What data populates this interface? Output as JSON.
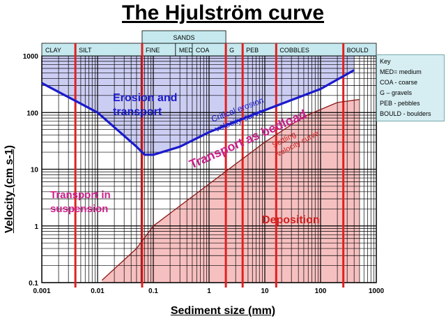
{
  "title": "The Hjulström curve",
  "chart_data": {
    "type": "line",
    "title": "The Hjulström curve",
    "xlabel": "Sediment size (mm)",
    "ylabel": "Velocity (cm s-1)",
    "xscale": "log",
    "yscale": "log",
    "xlim": [
      0.001,
      1000
    ],
    "ylim": [
      0.1,
      1000
    ],
    "grid": true,
    "x_ticks": [
      "0.001",
      "0.01",
      "0.1",
      "1",
      "10",
      "100",
      "1000"
    ],
    "y_ticks": [
      "0.1",
      "1",
      "10",
      "100",
      "1000"
    ],
    "series": [
      {
        "name": "Critical erosion velocity curve",
        "color": "#1a1acc",
        "x": [
          0.001,
          0.01,
          0.05,
          0.07,
          0.1,
          0.3,
          1,
          10,
          100,
          400
        ],
        "y": [
          330,
          100,
          25,
          18,
          18,
          25,
          45,
          110,
          260,
          560
        ]
      },
      {
        "name": "Settling velocity curve",
        "color": "#cc2222",
        "x": [
          0.012,
          0.05,
          0.1,
          1,
          10,
          50,
          200,
          500
        ],
        "y": [
          0.11,
          0.4,
          1,
          5.5,
          30,
          85,
          150,
          170
        ]
      }
    ],
    "size_classes": [
      {
        "label": "CLAY",
        "from": 0.001,
        "to": 0.004
      },
      {
        "label": "SILT",
        "from": 0.004,
        "to": 0.063
      },
      {
        "label": "FINE",
        "from": 0.063,
        "to": 0.25
      },
      {
        "label": "MED",
        "from": 0.25,
        "to": 0.5
      },
      {
        "label": "COA",
        "from": 0.5,
        "to": 2
      },
      {
        "label": "G",
        "from": 2,
        "to": 4
      },
      {
        "label": "PEB",
        "from": 4,
        "to": 16
      },
      {
        "label": "COBBLES",
        "from": 16,
        "to": 256
      },
      {
        "label": "BOULD",
        "from": 256,
        "to": 1000
      }
    ],
    "group_label": {
      "label": "SANDS",
      "from": 0.063,
      "to": 2
    },
    "boundaries": [
      0.004,
      0.063,
      2,
      4,
      16,
      256
    ],
    "annotations": [
      {
        "text": "Erosion and transport",
        "color": "#1a1acc"
      },
      {
        "text": "Critical erosion velocity curve",
        "color": "#1a1acc"
      },
      {
        "text": "Transport as bedload",
        "color": "#cc1f8a"
      },
      {
        "text": "Settling velocity curve",
        "color": "#cc2222"
      },
      {
        "text": "Transport in suspension",
        "color": "#cc1f8a"
      },
      {
        "text": "Deposition",
        "color": "#cc2222"
      }
    ]
  },
  "key": {
    "title": "Key",
    "items": [
      "MED= medium",
      "COA - coarse",
      "G – gravels",
      "PEB - pebbles",
      "BOULD - boulders"
    ]
  }
}
